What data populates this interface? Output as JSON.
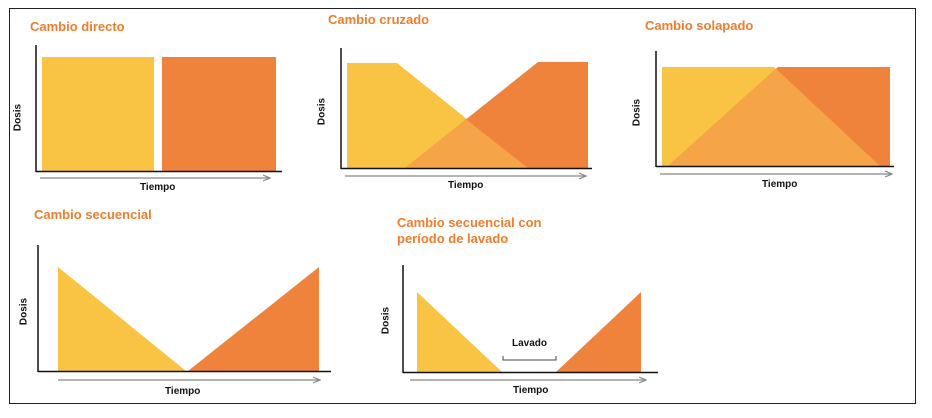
{
  "colors": {
    "yellow": "#f9c443",
    "orange": "#f0833c",
    "overlap": "#f5a447",
    "title": "#ef7d2d",
    "axis": "#111111",
    "arrow": "#888888"
  },
  "panels": {
    "directo": {
      "title": "Cambio directo",
      "xlabel": "Tiempo",
      "ylabel": "Dosis"
    },
    "cruzado": {
      "title": "Cambio cruzado",
      "xlabel": "Tiempo",
      "ylabel": "Dosis"
    },
    "solapado": {
      "title": "Cambio solapado",
      "xlabel": "Tiempo",
      "ylabel": "Dosis"
    },
    "secuencial": {
      "title": "Cambio secuencial",
      "xlabel": "Tiempo",
      "ylabel": "Dosis"
    },
    "lavado": {
      "title_line1": "Cambio secuencial con",
      "title_line2": "período de lavado",
      "xlabel": "Tiempo",
      "ylabel": "Dosis",
      "washout_label": "Lavado"
    }
  }
}
